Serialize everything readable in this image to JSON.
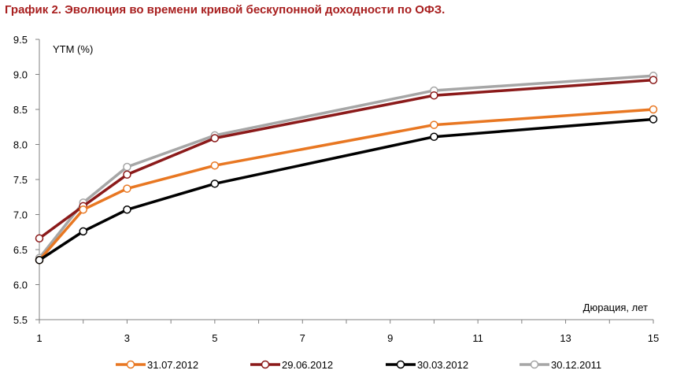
{
  "page_title": "График 2. Эволюция во времени кривой бескупонной доходности по ОФЗ.",
  "chart_data": {
    "type": "line",
    "title": "График 2. Эволюция во времени кривой бескупонной доходности по ОФЗ.",
    "ylabel": "YTM (%)",
    "xlabel": "Дюрация, лет",
    "xlim": [
      1,
      15
    ],
    "ylim": [
      5.5,
      9.5
    ],
    "x_ticks": [
      1,
      3,
      5,
      7,
      9,
      11,
      13,
      15
    ],
    "y_ticks": [
      "5.5",
      "6.0",
      "6.5",
      "7.0",
      "7.5",
      "8.0",
      "8.5",
      "9.0",
      "9.5"
    ],
    "x": [
      1,
      2,
      3,
      5,
      10,
      15
    ],
    "grid": false,
    "legend_position": "bottom",
    "series": [
      {
        "name": "31.07.2012",
        "color": "#e87722",
        "values": [
          6.35,
          7.07,
          7.37,
          7.7,
          8.28,
          8.5
        ]
      },
      {
        "name": "29.06.2012",
        "color": "#8b1a1a",
        "values": [
          6.66,
          7.12,
          7.57,
          8.09,
          8.7,
          8.92
        ]
      },
      {
        "name": "30.03.2012",
        "color": "#000000",
        "values": [
          6.35,
          6.76,
          7.07,
          7.44,
          8.11,
          8.36
        ]
      },
      {
        "name": "30.12.2011",
        "color": "#a6a6a6",
        "values": [
          6.38,
          7.17,
          7.68,
          8.13,
          8.77,
          8.98
        ]
      }
    ]
  }
}
